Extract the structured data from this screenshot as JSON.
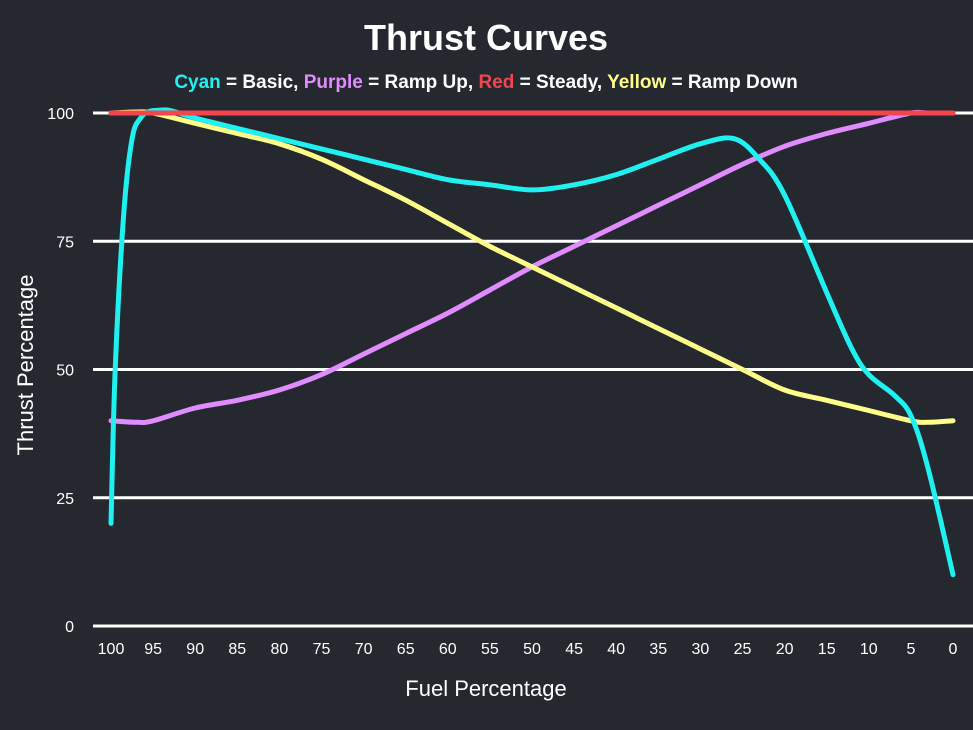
{
  "chart_data": {
    "type": "line",
    "title": "Thrust Curves",
    "legend": [
      {
        "name": "Cyan",
        "text": " = Basic",
        "sep": ", ",
        "color": "#1ff1f1"
      },
      {
        "name": "Purple",
        "text": " = Ramp Up",
        "sep": ", ",
        "color": "#e08cff"
      },
      {
        "name": "Red",
        "text": " = Steady",
        "sep": ", ",
        "color": "#f2464f"
      },
      {
        "name": "Yellow",
        "text": " = Ramp Down",
        "sep": "",
        "color": "#fffd8a"
      }
    ],
    "xlabel": "Fuel Percentage",
    "ylabel": "Thrust Percentage",
    "xlim": [
      100,
      0
    ],
    "ylim": [
      0,
      100
    ],
    "x_ticks": [
      "100",
      "95",
      "90",
      "85",
      "80",
      "75",
      "70",
      "65",
      "60",
      "55",
      "50",
      "45",
      "40",
      "35",
      "30",
      "25",
      "20",
      "15",
      "10",
      "5",
      "0"
    ],
    "y_ticks": [
      "0",
      "25",
      "50",
      "75",
      "100"
    ],
    "grid": true,
    "series": [
      {
        "name": "Basic",
        "color": "#1ff1f1",
        "x": [
          100,
          99.5,
          98.5,
          97.5,
          96.5,
          95.5,
          94.5,
          93,
          90,
          85,
          80,
          75,
          70,
          65,
          60,
          55,
          50,
          45,
          40,
          35,
          30,
          26,
          23,
          20,
          15,
          12,
          10,
          7,
          5,
          3,
          0
        ],
        "y": [
          20,
          50,
          80,
          95,
          99,
          100.3,
          100.5,
          100.5,
          99,
          97,
          95,
          93,
          91,
          89,
          87,
          86,
          85,
          86,
          88,
          91,
          94,
          95,
          91,
          84,
          65,
          54,
          49,
          45,
          41,
          31,
          10
        ]
      },
      {
        "name": "Ramp Up",
        "color": "#e08cff",
        "x": [
          100,
          97,
          95,
          90,
          85,
          80,
          75,
          70,
          65,
          60,
          55,
          50,
          45,
          40,
          35,
          30,
          25,
          20,
          15,
          10,
          5,
          3,
          0
        ],
        "y": [
          40,
          39.7,
          40,
          42.5,
          44,
          46,
          49,
          53,
          57,
          61,
          65.5,
          70,
          74,
          78,
          82,
          86,
          90,
          93.5,
          96,
          98,
          100,
          100,
          100
        ]
      },
      {
        "name": "Steady",
        "color": "#f2464f",
        "x": [
          100,
          0
        ],
        "y": [
          100,
          100
        ]
      },
      {
        "name": "Ramp Down",
        "color": "#fffd8a",
        "x": [
          100,
          97,
          95,
          90,
          85,
          80,
          75,
          70,
          65,
          60,
          55,
          50,
          45,
          40,
          35,
          30,
          25,
          20,
          15,
          10,
          5,
          3,
          0
        ],
        "y": [
          100,
          100.2,
          100,
          98,
          96,
          94,
          91,
          87,
          83,
          78.5,
          74,
          70,
          66,
          62,
          58,
          54,
          50,
          46,
          44,
          42,
          40,
          39.7,
          40
        ]
      }
    ]
  }
}
